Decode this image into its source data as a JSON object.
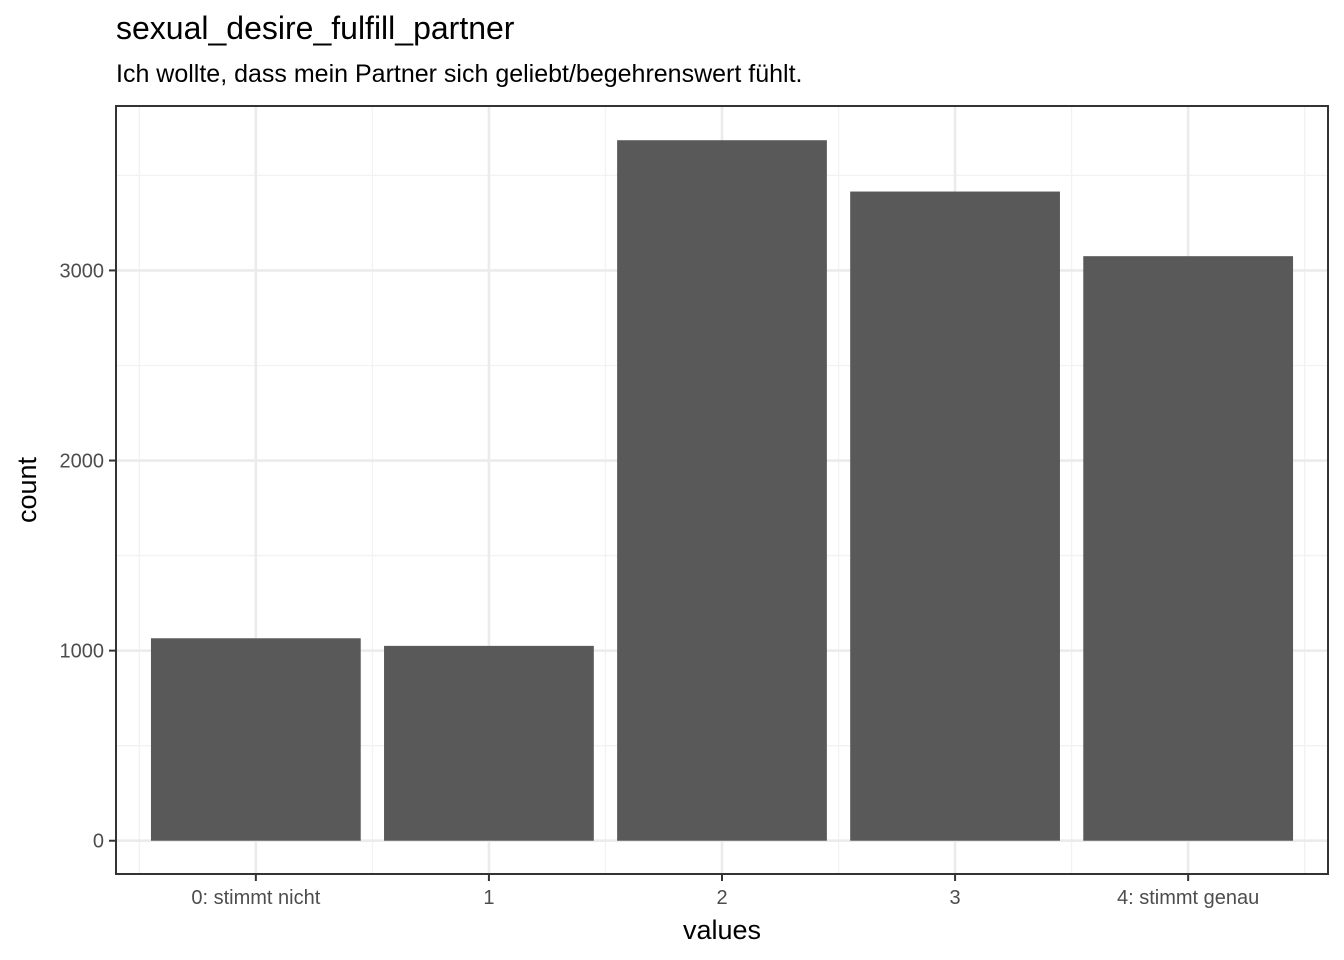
{
  "chart_data": {
    "type": "bar",
    "title": "sexual_desire_fulfill_partner",
    "subtitle": "Ich wollte, dass mein Partner sich geliebt/begehrenswert fühlt.",
    "xlabel": "values",
    "ylabel": "count",
    "categories": [
      "0: stimmt nicht",
      "1",
      "2",
      "3",
      "4: stimmt genau"
    ],
    "values": [
      1065,
      1025,
      3685,
      3415,
      3075
    ],
    "ylim": [
      -175,
      3865
    ],
    "yticks": [
      0,
      1000,
      2000,
      3000
    ],
    "yticks_minor": [
      500,
      1500,
      2500,
      3500
    ],
    "grid": true,
    "legend": "none",
    "colors": {
      "bar": "#595959",
      "grid_major": "#ebebeb",
      "grid_minor": "#f2f2f2",
      "panel_border": "#333333"
    }
  }
}
